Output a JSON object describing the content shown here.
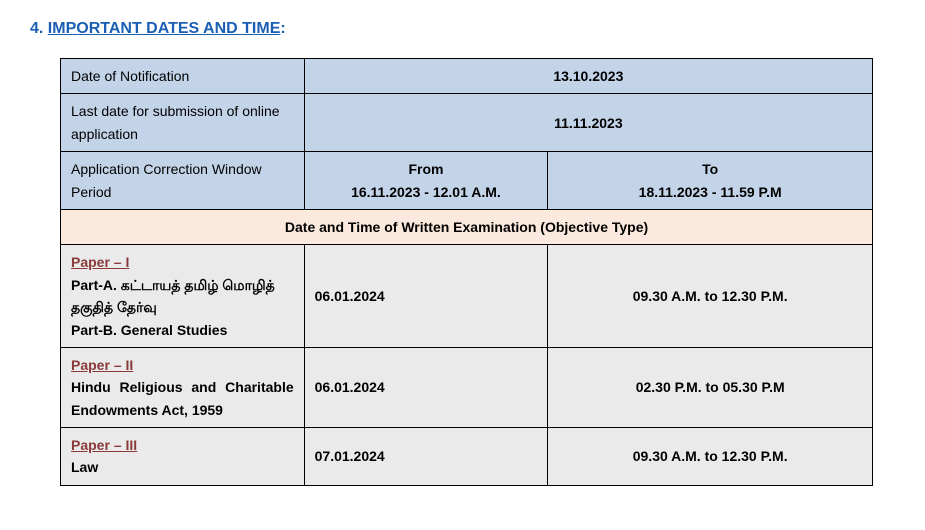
{
  "heading": {
    "number": "4.",
    "title": "IMPORTANT DATES AND TIME",
    "colon": ":"
  },
  "table": {
    "row1": {
      "label": "Date of Notification",
      "value": "13.10.2023"
    },
    "row2": {
      "label": "Last date for submission of online application",
      "value": "11.11.2023"
    },
    "row3": {
      "label": "Application Correction Window Period",
      "from_label": "From",
      "from_value": "16.11.2023 - 12.01 A.M.",
      "to_label": "To",
      "to_value": "18.11.2023 - 11.59 P.M"
    },
    "section_header": "Date and Time of Written Examination (Objective Type)",
    "paper1": {
      "link": "Paper – I",
      "desc_a": "Part-A. கட்டாயத் தமிழ் மொழித் தகுதித் தேர்வு",
      "desc_b": "Part-B. General Studies",
      "date": "06.01.2024",
      "time": "09.30 A.M. to 12.30 P.M."
    },
    "paper2": {
      "link": "Paper – II",
      "desc": "Hindu Religious and Charitable Endowments Act, 1959",
      "date": "06.01.2024",
      "time": "02.30 P.M. to 05.30 P.M"
    },
    "paper3": {
      "link": "Paper – III",
      "desc": "Law",
      "date": "07.01.2024",
      "time": "09.30 A.M. to 12.30 P.M."
    }
  }
}
